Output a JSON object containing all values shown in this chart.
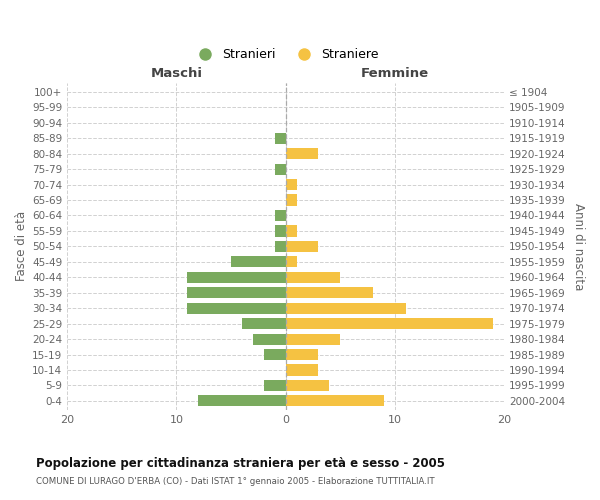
{
  "age_groups": [
    "0-4",
    "5-9",
    "10-14",
    "15-19",
    "20-24",
    "25-29",
    "30-34",
    "35-39",
    "40-44",
    "45-49",
    "50-54",
    "55-59",
    "60-64",
    "65-69",
    "70-74",
    "75-79",
    "80-84",
    "85-89",
    "90-94",
    "95-99",
    "100+"
  ],
  "birth_years": [
    "2000-2004",
    "1995-1999",
    "1990-1994",
    "1985-1989",
    "1980-1984",
    "1975-1979",
    "1970-1974",
    "1965-1969",
    "1960-1964",
    "1955-1959",
    "1950-1954",
    "1945-1949",
    "1940-1944",
    "1935-1939",
    "1930-1934",
    "1925-1929",
    "1920-1924",
    "1915-1919",
    "1910-1914",
    "1905-1909",
    "≤ 1904"
  ],
  "maschi": [
    8,
    2,
    0,
    2,
    3,
    4,
    9,
    9,
    9,
    5,
    1,
    1,
    1,
    0,
    0,
    1,
    0,
    1,
    0,
    0,
    0
  ],
  "femmine": [
    9,
    4,
    3,
    3,
    5,
    19,
    11,
    8,
    5,
    1,
    3,
    1,
    0,
    1,
    1,
    0,
    3,
    0,
    0,
    0,
    0
  ],
  "color_maschi": "#7aaa5e",
  "color_femmine": "#f5c242",
  "bg_color": "#ffffff",
  "grid_color": "#cccccc",
  "title": "Popolazione per cittadinanza straniera per età e sesso - 2005",
  "subtitle": "COMUNE DI LURAGO D'ERBA (CO) - Dati ISTAT 1° gennaio 2005 - Elaborazione TUTTITALIA.IT",
  "ylabel_left": "Fasce di età",
  "ylabel_right": "Anni di nascita",
  "xlabel_left": "Maschi",
  "xlabel_right": "Femmine",
  "legend_stranieri": "Stranieri",
  "legend_straniere": "Straniere",
  "xlim": 20
}
